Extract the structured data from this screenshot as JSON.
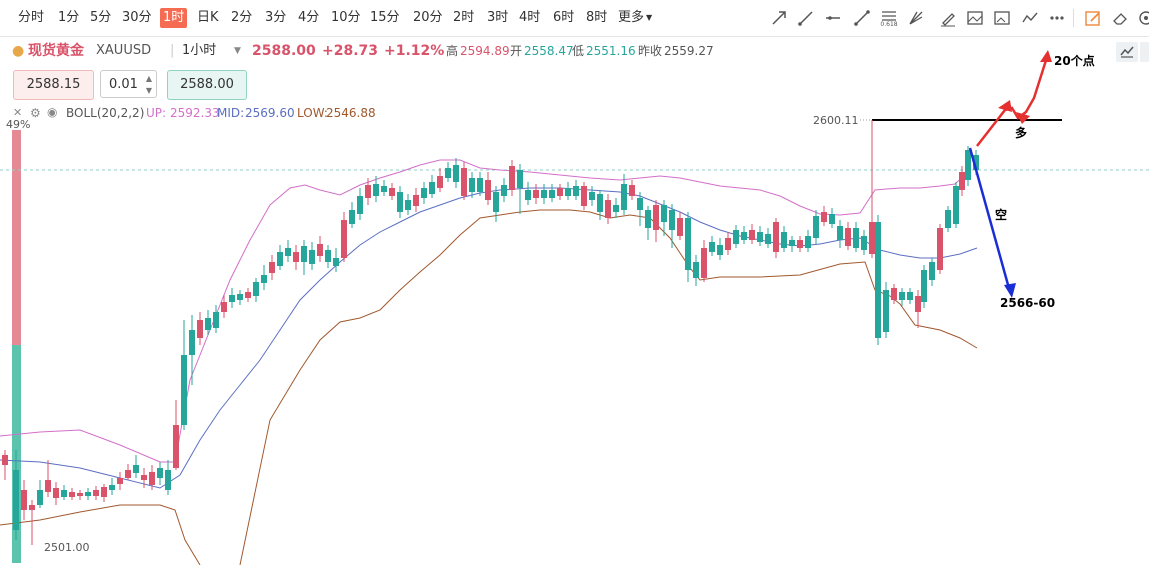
{
  "toolbar": {
    "timeframes": [
      "分时",
      "1分",
      "5分",
      "30分",
      "1时",
      "日K",
      "2分",
      "3分",
      "4分",
      "10分",
      "15分",
      "20分",
      "2时",
      "3时",
      "4时",
      "6时",
      "8时",
      "更多"
    ],
    "active_timeframe": "1时",
    "drawing_tools": [
      "arrow-line-icon",
      "ray-line-icon",
      "horizontal-line-icon",
      "segment-line-icon",
      "fibonacci-icon",
      "pitchfork-icon",
      "brush-icon",
      "image-icon",
      "picture-icon",
      "wave-icon",
      "more-icon",
      "edit-icon",
      "eraser-icon",
      "settings-icon"
    ],
    "fib_label": "0.618"
  },
  "symbol": {
    "name": "现货黄金",
    "code": "XAUUSD",
    "interval": "1小时",
    "price": "2588.00",
    "change": "+28.73",
    "change_pct": "+1.12%",
    "high_label": "高",
    "high": "2594.89",
    "open_label": "开",
    "open": "2558.47",
    "low_label": "低",
    "low": "2551.16",
    "prev_close_label": "昨收",
    "prev_close": "2559.27"
  },
  "order": {
    "sell_price": "2588.15",
    "lot": "0.01",
    "buy_price": "2588.00"
  },
  "indicator": {
    "name": "BOLL(20,2,2)",
    "up_label": "UP:",
    "up": "2592.33",
    "mid_label": "MID:",
    "mid": "2569.60",
    "low_label": "LOW:",
    "low": "2546.88",
    "colors": {
      "up": "#d36fc9",
      "mid": "#5b6fc2",
      "low": "#a0582d"
    }
  },
  "chart": {
    "sentiment_pct": "49%",
    "high_price_label": "2600.11",
    "low_price_label": "2501.00",
    "colors": {
      "up": "#d9536a",
      "down": "#26a69a",
      "long_arrow": "#e53030",
      "short_arrow": "#1b2ed6"
    }
  },
  "annotations": {
    "long_label": "多",
    "long_target": "20个点",
    "short_label": "空",
    "short_target": "2566-60"
  }
}
